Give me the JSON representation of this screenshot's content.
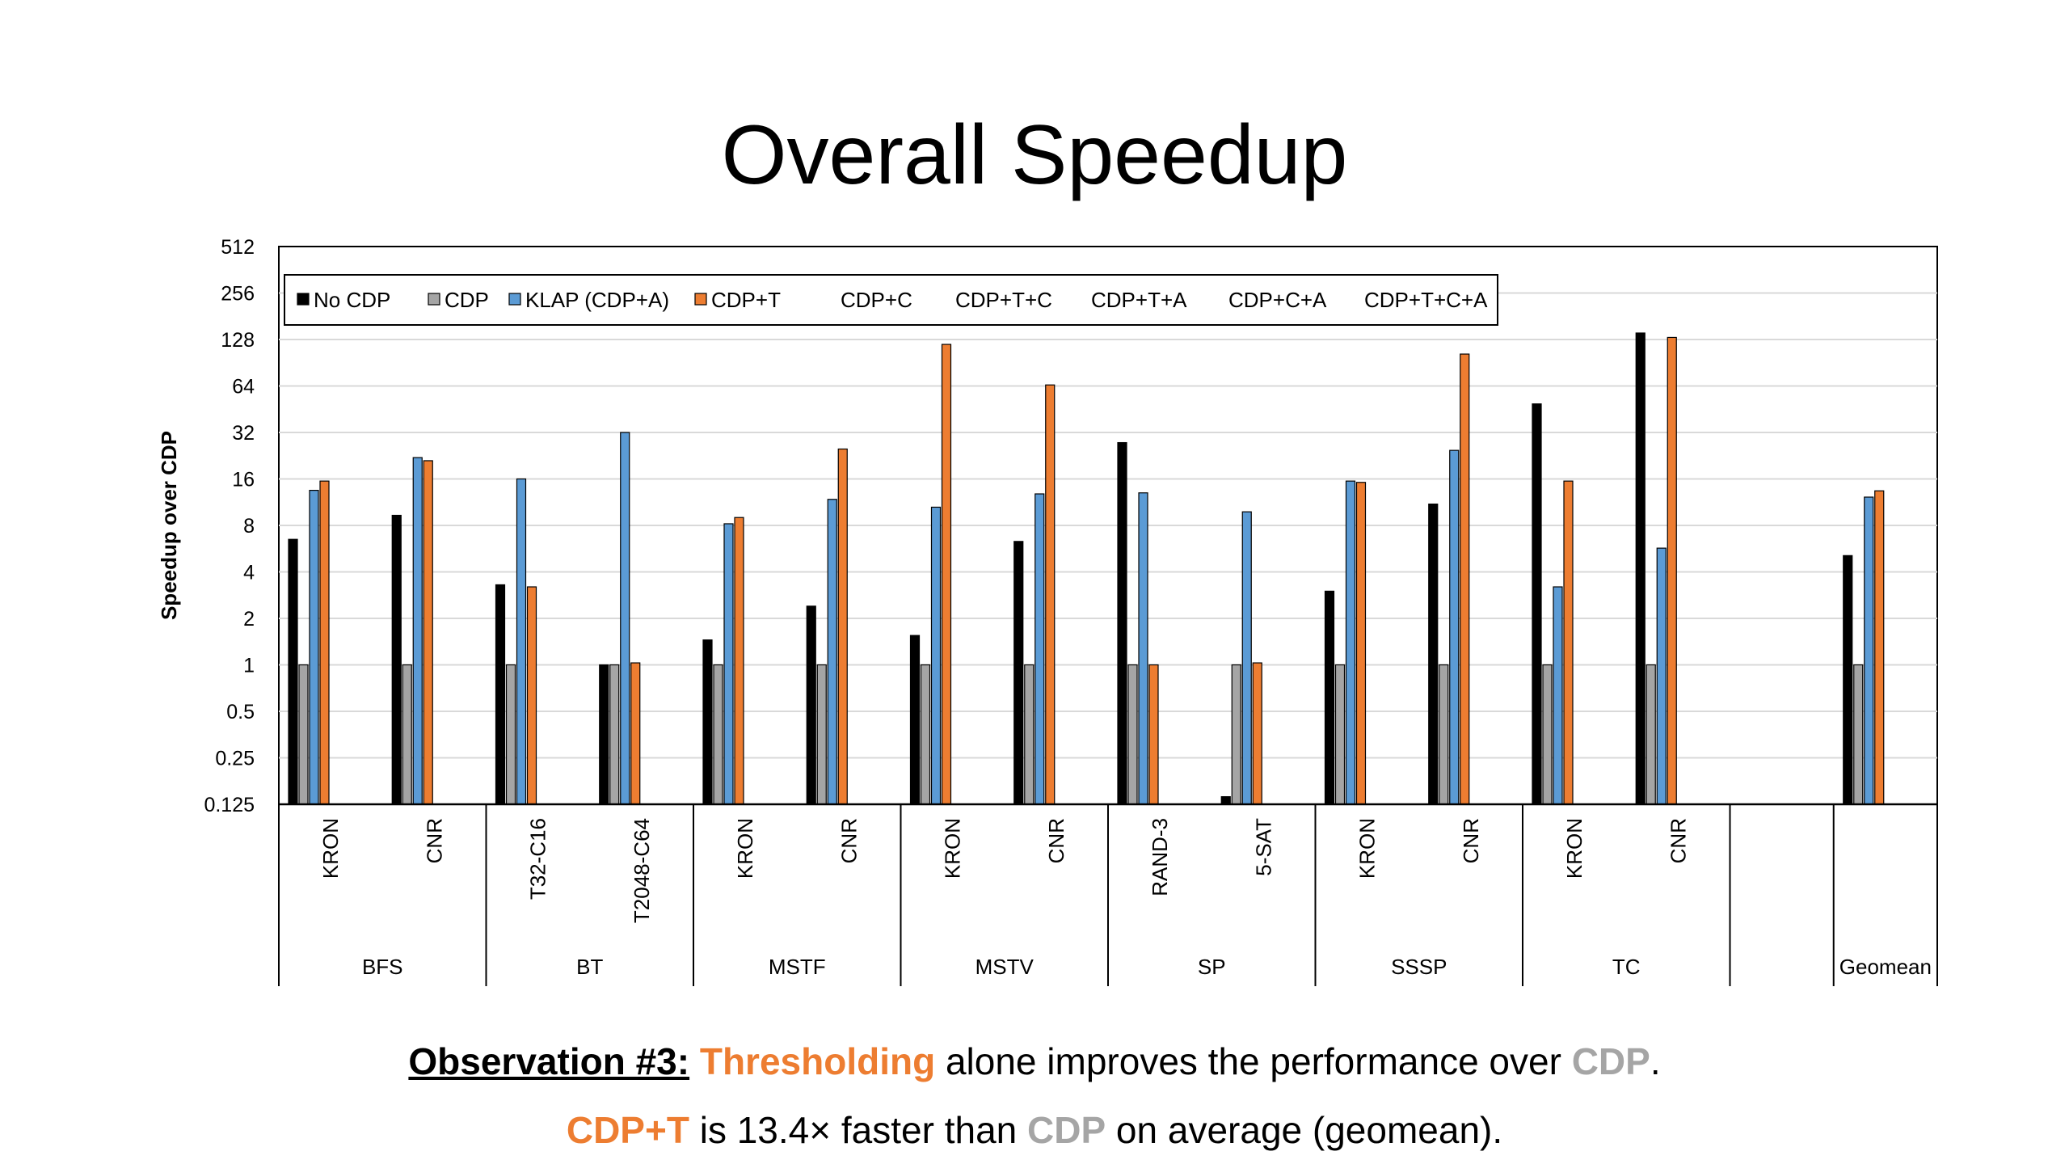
{
  "slide": {
    "title": "Overall Speedup",
    "caption1": {
      "lead": "Observation #3:",
      "highlight": "Thresholding",
      "mid": " alone improves the performance over ",
      "cdp": "CDP",
      "end": "."
    },
    "caption2": {
      "lead": "CDP+T",
      "mid": " is 13.4× faster than ",
      "cdp": "CDP",
      "end": " on average (geomean)."
    }
  },
  "colors": {
    "No CDP": "#000000",
    "CDP": "#A5A5A5",
    "KLAP (CDP+A)": "#5B9BD5",
    "CDP+T": "#ED7D31",
    "highlight_orange": "#ED7D31",
    "highlight_gray": "#A5A5A5"
  },
  "chart_data": {
    "type": "bar",
    "title": "",
    "xlabel": "",
    "ylabel": "Speedup over CDP",
    "yscale": "log2",
    "ylim": [
      0.125,
      512
    ],
    "yticks": [
      "0.125",
      "0.25",
      "0.5",
      "1",
      "2",
      "4",
      "8",
      "16",
      "32",
      "64",
      "128",
      "256",
      "512"
    ],
    "grid": true,
    "legend_position": "top-left inside",
    "legend": [
      "No CDP",
      "CDP",
      "KLAP (CDP+A)",
      "CDP+T",
      "CDP+C",
      "CDP+T+C",
      "CDP+T+A",
      "CDP+C+A",
      "CDP+T+C+A"
    ],
    "groups": [
      "BFS",
      "BT",
      "MSTF",
      "MSTV",
      "SP",
      "SSSP",
      "TC",
      "",
      "Geomean"
    ],
    "categories": [
      {
        "group": "BFS",
        "label": "KRON"
      },
      {
        "group": "BFS",
        "label": "CNR"
      },
      {
        "group": "BT",
        "label": "T32-C16"
      },
      {
        "group": "BT",
        "label": "T2048-C64"
      },
      {
        "group": "MSTF",
        "label": "KRON"
      },
      {
        "group": "MSTF",
        "label": "CNR"
      },
      {
        "group": "MSTV",
        "label": "KRON"
      },
      {
        "group": "MSTV",
        "label": "CNR"
      },
      {
        "group": "SP",
        "label": "RAND-3"
      },
      {
        "group": "SP",
        "label": "5-SAT"
      },
      {
        "group": "SSSP",
        "label": "KRON"
      },
      {
        "group": "SSSP",
        "label": "CNR"
      },
      {
        "group": "TC",
        "label": "KRON"
      },
      {
        "group": "TC",
        "label": "CNR"
      },
      {
        "group": "",
        "label": ""
      },
      {
        "group": "Geomean",
        "label": ""
      }
    ],
    "series": [
      {
        "name": "No CDP",
        "values": [
          6.5,
          9.3,
          3.3,
          1.0,
          1.45,
          2.4,
          1.55,
          6.3,
          27.5,
          0.14,
          3.0,
          11.0,
          49.0,
          141.0,
          null,
          5.1
        ]
      },
      {
        "name": "CDP",
        "values": [
          1,
          1,
          1,
          1,
          1,
          1,
          1,
          1,
          1,
          1,
          1,
          1,
          1,
          1,
          null,
          1
        ]
      },
      {
        "name": "KLAP (CDP+A)",
        "values": [
          13.5,
          22.0,
          16.0,
          32.0,
          8.2,
          11.8,
          10.5,
          12.8,
          13.0,
          9.8,
          15.5,
          24.5,
          3.2,
          5.7,
          null,
          12.2
        ]
      },
      {
        "name": "CDP+T",
        "values": [
          15.5,
          21.0,
          3.2,
          1.03,
          9.0,
          25.0,
          119.0,
          65.0,
          1.0,
          1.03,
          15.2,
          103.0,
          15.5,
          132.0,
          null,
          13.4
        ]
      }
    ]
  }
}
